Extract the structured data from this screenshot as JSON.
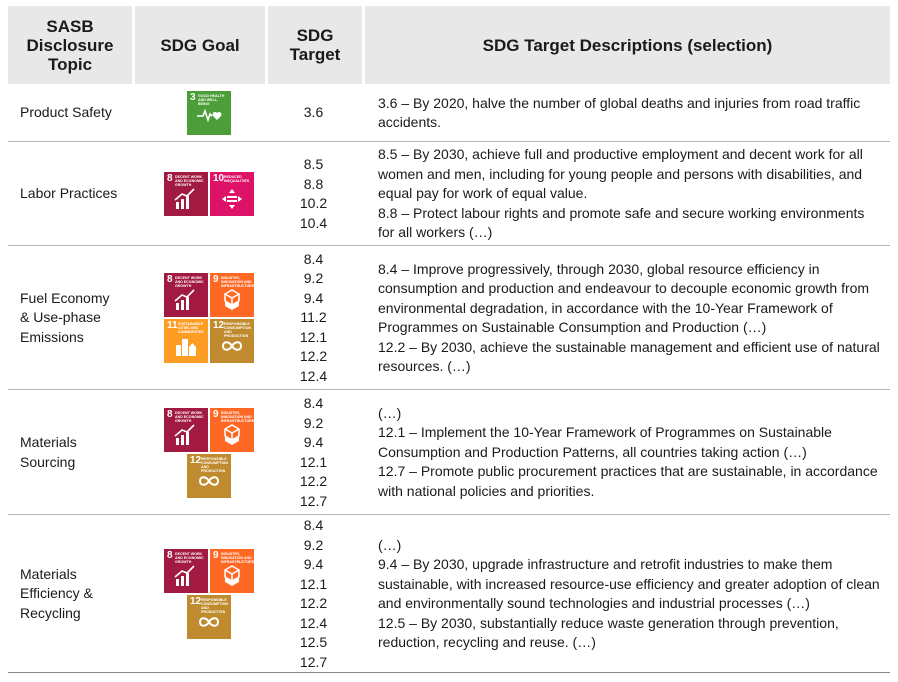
{
  "headers": {
    "topic": "SASB Disclosure Topic",
    "goal": "SDG Goal",
    "target": "SDG Target",
    "descriptions": "SDG Target Descriptions (selection)"
  },
  "sdg_goals": {
    "g3": {
      "number": "3",
      "title": "Good Health and Well-Being",
      "color": "#4c9f38"
    },
    "g8": {
      "number": "8",
      "title": "Decent Work and Economic Growth",
      "color": "#a21942"
    },
    "g9": {
      "number": "9",
      "title": "Industry, Innovation and Infrastructure",
      "color": "#fd6925"
    },
    "g10": {
      "number": "10",
      "title": "Reduced Inequalities",
      "color": "#dd1367"
    },
    "g11": {
      "number": "11",
      "title": "Sustainable Cities and Communities",
      "color": "#fd9d24"
    },
    "g12": {
      "number": "12",
      "title": "Responsible Consumption and Production",
      "color": "#bf8b2e"
    }
  },
  "rows": [
    {
      "topic": "Product Safety",
      "targets": [
        "3.6"
      ],
      "descriptions": [
        "3.6 – By 2020, halve the number of global deaths and injuries from road traffic accidents."
      ]
    },
    {
      "topic": "Labor Practices",
      "targets": [
        "8.5",
        "8.8",
        "10.2",
        "10.4"
      ],
      "descriptions": [
        "8.5 – By 2030, achieve full and productive employment and decent work for all women and men, including for young people and persons with disabilities, and equal pay for work of equal value.",
        "8.8 – Protect labour rights and promote safe and secure working environments for all workers (…)"
      ]
    },
    {
      "topic_lines": [
        "Fuel Economy",
        "& Use-phase",
        "Emissions"
      ],
      "targets": [
        "8.4",
        "9.2",
        "9.4",
        "11.2",
        "12.1",
        "12.2",
        "12.4"
      ],
      "descriptions": [
        "8.4 – Improve progressively, through 2030, global resource efficiency in consumption and production and endeavour to decouple economic growth from environmental degradation, in accordance with the 10-Year Framework of Programmes on Sustainable Consumption and Production (…)",
        "12.2 – By 2030, achieve the sustainable management and efficient use of natural resources. (…)"
      ]
    },
    {
      "topic_lines": [
        "Materials",
        "Sourcing"
      ],
      "targets": [
        "8.4",
        "9.2",
        "9.4",
        "12.1",
        "12.2",
        "12.7"
      ],
      "descriptions": [
        "(…)",
        "12.1 – Implement the 10-Year Framework of Programmes on Sustainable Consumption and Production Patterns, all countries taking action (…)",
        "12.7 – Promote public procurement practices that are sustainable, in accordance with national policies and priorities."
      ]
    },
    {
      "topic_lines": [
        "Materials",
        "Efficiency &",
        "Recycling"
      ],
      "targets": [
        "8.4",
        "9.2",
        "9.4",
        "12.1",
        "12.2",
        "12.4",
        "12.5",
        "12.7"
      ],
      "descriptions": [
        "(…)",
        "9.4 – By 2030, upgrade infrastructure and retrofit industries to make them sustainable, with increased resource-use efficiency and greater adoption of clean and environmentally sound technologies and industrial processes (…)",
        "12.5 – By 2030, substantially reduce waste generation through prevention, reduction, recycling and reuse. (…)"
      ]
    }
  ]
}
